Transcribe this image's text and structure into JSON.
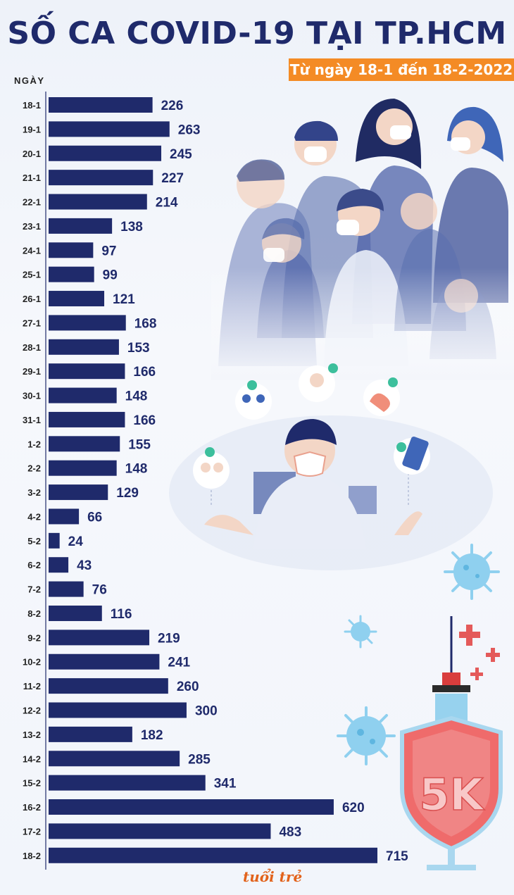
{
  "title": "SỐ CA COVID-19 TẠI TP.HCM",
  "subtitle": "Từ ngày 18-1 đến 18-2-2022",
  "chart_data": {
    "type": "bar",
    "orientation": "horizontal",
    "ylabel": "NGÀY",
    "categories": [
      "18-1",
      "19-1",
      "20-1",
      "21-1",
      "22-1",
      "23-1",
      "24-1",
      "25-1",
      "26-1",
      "27-1",
      "28-1",
      "29-1",
      "30-1",
      "31-1",
      "1-2",
      "2-2",
      "3-2",
      "4-2",
      "5-2",
      "6-2",
      "7-2",
      "8-2",
      "9-2",
      "10-2",
      "11-2",
      "12-2",
      "13-2",
      "14-2",
      "15-2",
      "16-2",
      "17-2",
      "18-2"
    ],
    "values": [
      226,
      263,
      245,
      227,
      214,
      138,
      97,
      99,
      121,
      168,
      153,
      166,
      148,
      166,
      155,
      148,
      129,
      66,
      24,
      43,
      76,
      116,
      219,
      241,
      260,
      300,
      182,
      285,
      341,
      620,
      483,
      715
    ],
    "bar_color": "#1f2a6b",
    "label_color": "#1f2a6b",
    "grid": false
  },
  "illustration": {
    "badge_text": "5K",
    "logo_text": "tuổi trẻ",
    "colors": {
      "people": "#5a6fae",
      "skin": "#f3d6c6",
      "virus": "#6fc3e8",
      "shield": "#ef6b6b",
      "check": "#3cbf9c",
      "cross": "#e45a5a"
    }
  }
}
